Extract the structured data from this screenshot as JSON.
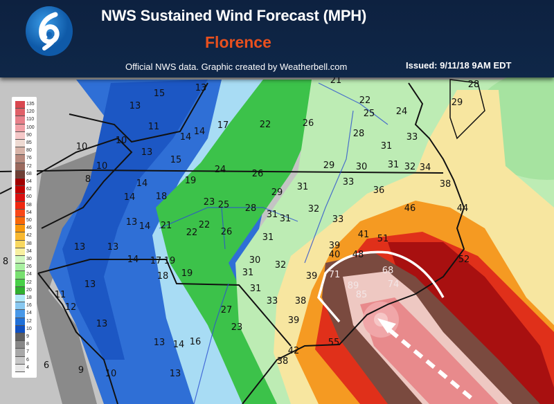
{
  "header": {
    "title": "NWS Sustained Wind Forecast (MPH)",
    "storm_name": "Florence",
    "credit": "Official NWS data. Graphic created by Weatherbell.com",
    "issued": "Issued: 9/11/18 9AM EDT",
    "logo_icon": "hurricane-icon",
    "title_color": "#ffffff",
    "storm_name_color": "#e8501e",
    "background": "#0f2748"
  },
  "legend": {
    "unit": "MPH",
    "entries": [
      {
        "value": "135",
        "color": "#d9474f"
      },
      {
        "value": "120",
        "color": "#e06068"
      },
      {
        "value": "110",
        "color": "#e8808a"
      },
      {
        "value": "100",
        "color": "#f0a0a6"
      },
      {
        "value": "90",
        "color": "#f5c8c8"
      },
      {
        "value": "85",
        "color": "#eedad2"
      },
      {
        "value": "80",
        "color": "#d8b4a8"
      },
      {
        "value": "76",
        "color": "#b88a7e"
      },
      {
        "value": "72",
        "color": "#9a6a5e"
      },
      {
        "value": "68",
        "color": "#6e4036"
      },
      {
        "value": "64",
        "color": "#a00000"
      },
      {
        "value": "62",
        "color": "#c00000"
      },
      {
        "value": "60",
        "color": "#d81010"
      },
      {
        "value": "58",
        "color": "#f02810"
      },
      {
        "value": "54",
        "color": "#f84818"
      },
      {
        "value": "50",
        "color": "#f86808"
      },
      {
        "value": "46",
        "color": "#f89808"
      },
      {
        "value": "42",
        "color": "#f8b830"
      },
      {
        "value": "38",
        "color": "#f8d860"
      },
      {
        "value": "34",
        "color": "#f8f0a0"
      },
      {
        "value": "30",
        "color": "#d0f8c0"
      },
      {
        "value": "26",
        "color": "#a8f0a0"
      },
      {
        "value": "24",
        "color": "#78e070"
      },
      {
        "value": "22",
        "color": "#48d048"
      },
      {
        "value": "20",
        "color": "#30b030"
      },
      {
        "value": "18",
        "color": "#b0e8f8"
      },
      {
        "value": "16",
        "color": "#88c8f0"
      },
      {
        "value": "14",
        "color": "#4898e8"
      },
      {
        "value": "12",
        "color": "#2070d8"
      },
      {
        "value": "10",
        "color": "#1050c0"
      },
      {
        "value": "9",
        "color": "#606060"
      },
      {
        "value": "8",
        "color": "#888888"
      },
      {
        "value": "7",
        "color": "#a8a8a8"
      },
      {
        "value": "6",
        "color": "#c8c8c8"
      },
      {
        "value": "4",
        "color": "#e8e8e8"
      }
    ]
  },
  "map": {
    "wind_labels": [
      "15",
      "13",
      "13",
      "11",
      "17",
      "22",
      "14",
      "14",
      "10",
      "10",
      "13",
      "15",
      "10",
      "24",
      "26",
      "8",
      "14",
      "19",
      "29",
      "14",
      "18",
      "23",
      "25",
      "28",
      "31",
      "31",
      "13",
      "14",
      "21",
      "22",
      "22",
      "26",
      "31",
      "21",
      "22",
      "25",
      "24",
      "28",
      "29",
      "26",
      "28",
      "31",
      "33",
      "29",
      "30",
      "31",
      "32",
      "34",
      "36",
      "33",
      "31",
      "38",
      "32",
      "33",
      "41",
      "51",
      "46",
      "44",
      "52",
      "13",
      "13",
      "14",
      "17",
      "19",
      "8",
      "18",
      "19",
      "13",
      "11",
      "12",
      "13",
      "27",
      "23",
      "13",
      "14",
      "16",
      "6",
      "9",
      "10",
      "13",
      "30",
      "31",
      "31",
      "33",
      "38",
      "32",
      "39",
      "40",
      "48",
      "71",
      "68",
      "89",
      "74",
      "85",
      "39",
      "38",
      "39",
      "55",
      "42"
    ],
    "track_arrow": "dashed-arrow-northwest",
    "landfall_outline": "white-hook-outline"
  }
}
